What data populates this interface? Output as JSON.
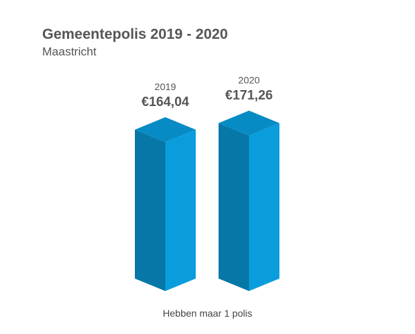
{
  "title": "Gemeentepolis 2019 - 2020",
  "subtitle": "Maastricht",
  "chart_data": {
    "type": "bar",
    "categories": [
      "2019",
      "2020"
    ],
    "values": [
      164.04,
      171.26
    ],
    "value_labels": [
      "€164,04",
      "€171,26"
    ],
    "xlabel": "Hebben maar 1 polis",
    "ylabel": "",
    "colors": {
      "front_face": "#0a9ddd",
      "side_face": "#0677a6",
      "top_face": "#078bc4"
    }
  }
}
